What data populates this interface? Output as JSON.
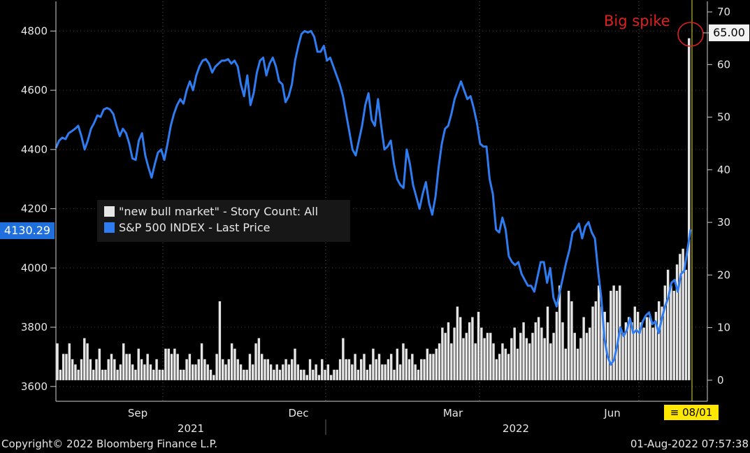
{
  "chart_data": {
    "type": "line+bar",
    "annotation": "Big spike",
    "left_axis": {
      "ticks": [
        3600,
        3800,
        4000,
        4200,
        4400,
        4600,
        4800
      ],
      "ylim": [
        3550,
        4900
      ]
    },
    "right_axis": {
      "ticks": [
        0,
        10,
        20,
        30,
        40,
        50,
        60,
        70
      ],
      "ylim": [
        -4,
        72
      ]
    },
    "x_axis": {
      "month_labels": [
        "Sep",
        "Dec",
        "Mar",
        "Jun"
      ],
      "year_labels": [
        "2021",
        "2022"
      ]
    },
    "legend": {
      "items": [
        {
          "label": "\"new bull market\" - Story Count: All",
          "color": "#e6e6e6"
        },
        {
          "label": "S&P 500 INDEX - Last Price",
          "color": "#2f7bf0"
        }
      ]
    },
    "last_price_label": "4130.29",
    "spike_value_label": "65.00",
    "last_date_label": "08/01",
    "series": [
      {
        "name": "S&P 500 INDEX - Last Price",
        "color": "#2f7bf0",
        "values": [
          4405,
          4430,
          4440,
          4435,
          4455,
          4462,
          4470,
          4480,
          4445,
          4400,
          4430,
          4470,
          4490,
          4515,
          4510,
          4535,
          4540,
          4535,
          4520,
          4480,
          4445,
          4470,
          4455,
          4420,
          4370,
          4365,
          4430,
          4455,
          4380,
          4340,
          4305,
          4350,
          4390,
          4400,
          4365,
          4420,
          4480,
          4520,
          4550,
          4570,
          4555,
          4600,
          4630,
          4600,
          4650,
          4680,
          4700,
          4705,
          4690,
          4660,
          4680,
          4690,
          4700,
          4700,
          4705,
          4690,
          4700,
          4680,
          4620,
          4580,
          4650,
          4550,
          4590,
          4660,
          4700,
          4710,
          4650,
          4690,
          4710,
          4680,
          4630,
          4620,
          4560,
          4580,
          4620,
          4700,
          4750,
          4790,
          4800,
          4795,
          4800,
          4780,
          4730,
          4730,
          4750,
          4700,
          4710,
          4680,
          4650,
          4620,
          4580,
          4520,
          4460,
          4400,
          4380,
          4430,
          4480,
          4550,
          4590,
          4500,
          4480,
          4570,
          4480,
          4400,
          4410,
          4430,
          4350,
          4300,
          4280,
          4270,
          4400,
          4350,
          4280,
          4240,
          4200,
          4250,
          4290,
          4220,
          4180,
          4240,
          4340,
          4420,
          4470,
          4480,
          4520,
          4570,
          4600,
          4630,
          4600,
          4570,
          4580,
          4540,
          4490,
          4420,
          4410,
          4410,
          4300,
          4250,
          4130,
          4120,
          4170,
          4130,
          4040,
          4020,
          4010,
          4020,
          3980,
          3960,
          3940,
          3940,
          3920,
          3970,
          4020,
          4020,
          3950,
          4000,
          3900,
          3870,
          3920,
          3970,
          4020,
          4060,
          4120,
          4130,
          4150,
          4100,
          4140,
          4155,
          4120,
          4100,
          3990,
          3900,
          3760,
          3700,
          3674,
          3690,
          3740,
          3800,
          3770,
          3790,
          3830,
          3780,
          3790,
          3780,
          3820,
          3840,
          3850,
          3810,
          3820,
          3780,
          3830,
          3870,
          3900,
          3950,
          3960,
          3920,
          3980,
          3990,
          4060,
          4130
        ]
      },
      {
        "name": "\"new bull market\" - Story Count: All",
        "color": "#e6e6e6",
        "values": [
          7,
          2,
          5,
          5,
          7,
          4,
          3,
          2,
          4,
          8,
          7,
          4,
          2,
          4,
          6,
          2,
          2,
          4,
          5,
          4,
          2,
          3,
          7,
          5,
          5,
          3,
          2,
          6,
          4,
          3,
          5,
          3,
          2,
          4,
          2,
          2,
          6,
          6,
          5,
          6,
          5,
          2,
          2,
          4,
          5,
          3,
          3,
          4,
          7,
          4,
          3,
          2,
          1,
          5,
          15,
          4,
          3,
          4,
          7,
          6,
          4,
          3,
          2,
          2,
          5,
          3,
          7,
          8,
          5,
          4,
          4,
          3,
          2,
          3,
          2,
          3,
          4,
          3,
          4,
          6,
          3,
          2,
          2,
          1,
          4,
          2,
          3,
          1,
          4,
          2,
          3,
          1,
          2,
          2,
          4,
          8,
          4,
          4,
          3,
          5,
          2,
          4,
          5,
          2,
          3,
          6,
          4,
          5,
          3,
          3,
          4,
          5,
          2,
          6,
          3,
          7,
          6,
          4,
          5,
          3,
          2,
          4,
          4,
          6,
          5,
          5,
          6,
          7,
          10,
          9,
          11,
          7,
          10,
          14,
          12,
          8,
          9,
          11,
          12,
          7,
          13,
          10,
          8,
          9,
          9,
          7,
          4,
          5,
          7,
          6,
          5,
          8,
          10,
          6,
          9,
          11,
          8,
          7,
          9,
          11,
          12,
          10,
          8,
          14,
          7,
          9,
          13,
          18,
          11,
          6,
          17,
          15,
          9,
          6,
          8,
          12,
          9,
          10,
          14,
          15,
          18,
          14,
          13,
          11,
          17,
          18,
          17,
          18,
          9,
          11,
          12,
          11,
          14,
          13,
          11,
          10,
          12,
          12,
          10,
          13,
          15,
          14,
          18,
          21,
          18,
          17,
          22,
          24,
          25,
          21,
          65
        ]
      }
    ]
  },
  "footer": {
    "copyright": "Copyright© 2022 Bloomberg Finance L.P.",
    "timestamp": "01-Aug-2022 07:57:38"
  }
}
